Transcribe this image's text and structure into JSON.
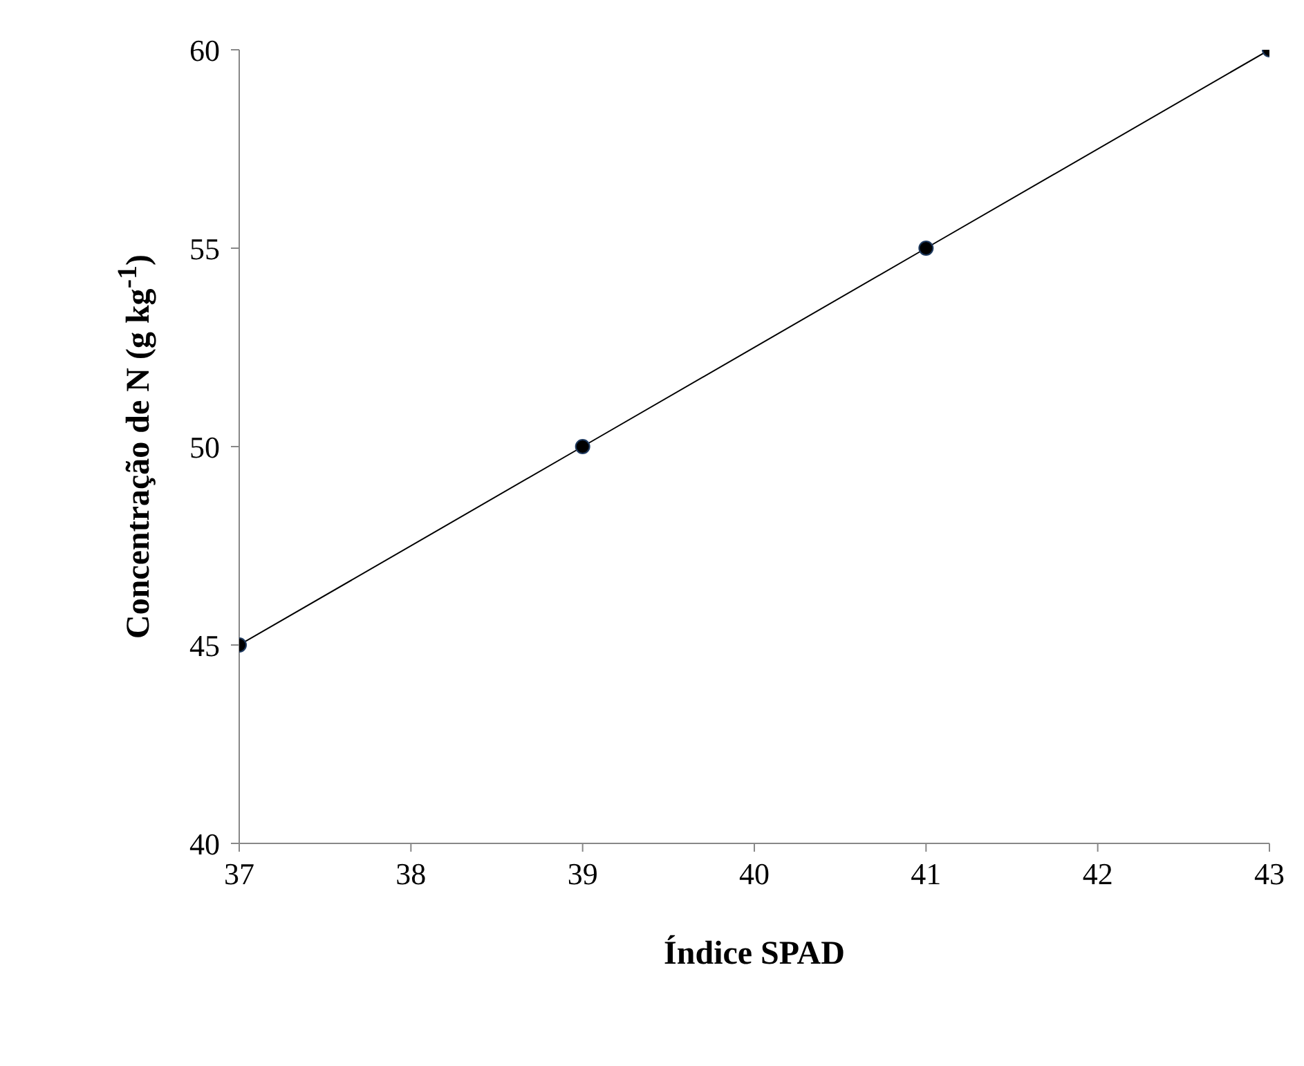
{
  "chart_data": {
    "type": "line",
    "xlabel": "Índice SPAD",
    "ylabel": "Concentração de N (g kg$^{-1}$)",
    "x": [
      37,
      39,
      41,
      43
    ],
    "series": [
      {
        "color": "#000000",
        "values": [
          45,
          50,
          55,
          60
        ]
      }
    ],
    "xlim": [
      37,
      43
    ],
    "xticks": [
      37,
      38,
      39,
      40,
      41,
      42,
      43
    ],
    "ylim": [
      40,
      60
    ],
    "yticks": [
      40,
      45,
      50,
      55,
      60
    ],
    "grid": false,
    "legend": false,
    "marker": "circle",
    "line_style": "solid"
  }
}
